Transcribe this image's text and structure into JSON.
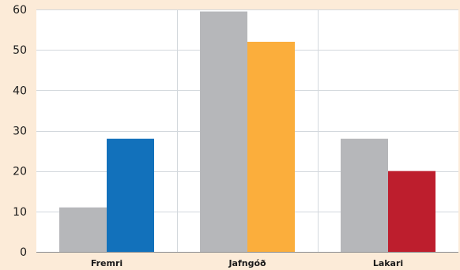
{
  "chart_data": {
    "type": "bar",
    "title": "",
    "xlabel": "",
    "ylabel": "",
    "categories": [
      "Fremri",
      "Jafngóð",
      "Lakari"
    ],
    "series": [
      {
        "values": [
          11,
          59.5,
          28
        ],
        "colors": [
          "#b6b7ba",
          "#b6b7ba",
          "#b6b7ba"
        ]
      },
      {
        "values": [
          28,
          52,
          20
        ],
        "colors": [
          "#1271bb",
          "#fbae3c",
          "#bd1e2d"
        ]
      }
    ],
    "ylim": [
      0,
      60
    ],
    "yticks": [
      0,
      10,
      20,
      30,
      40,
      50,
      60
    ],
    "grid": {
      "horizontal": true,
      "vertical_separators": true,
      "color": "#d3d8dd"
    },
    "background": "#fcebd8",
    "plot_background": "#ffffff",
    "legend": "none"
  }
}
